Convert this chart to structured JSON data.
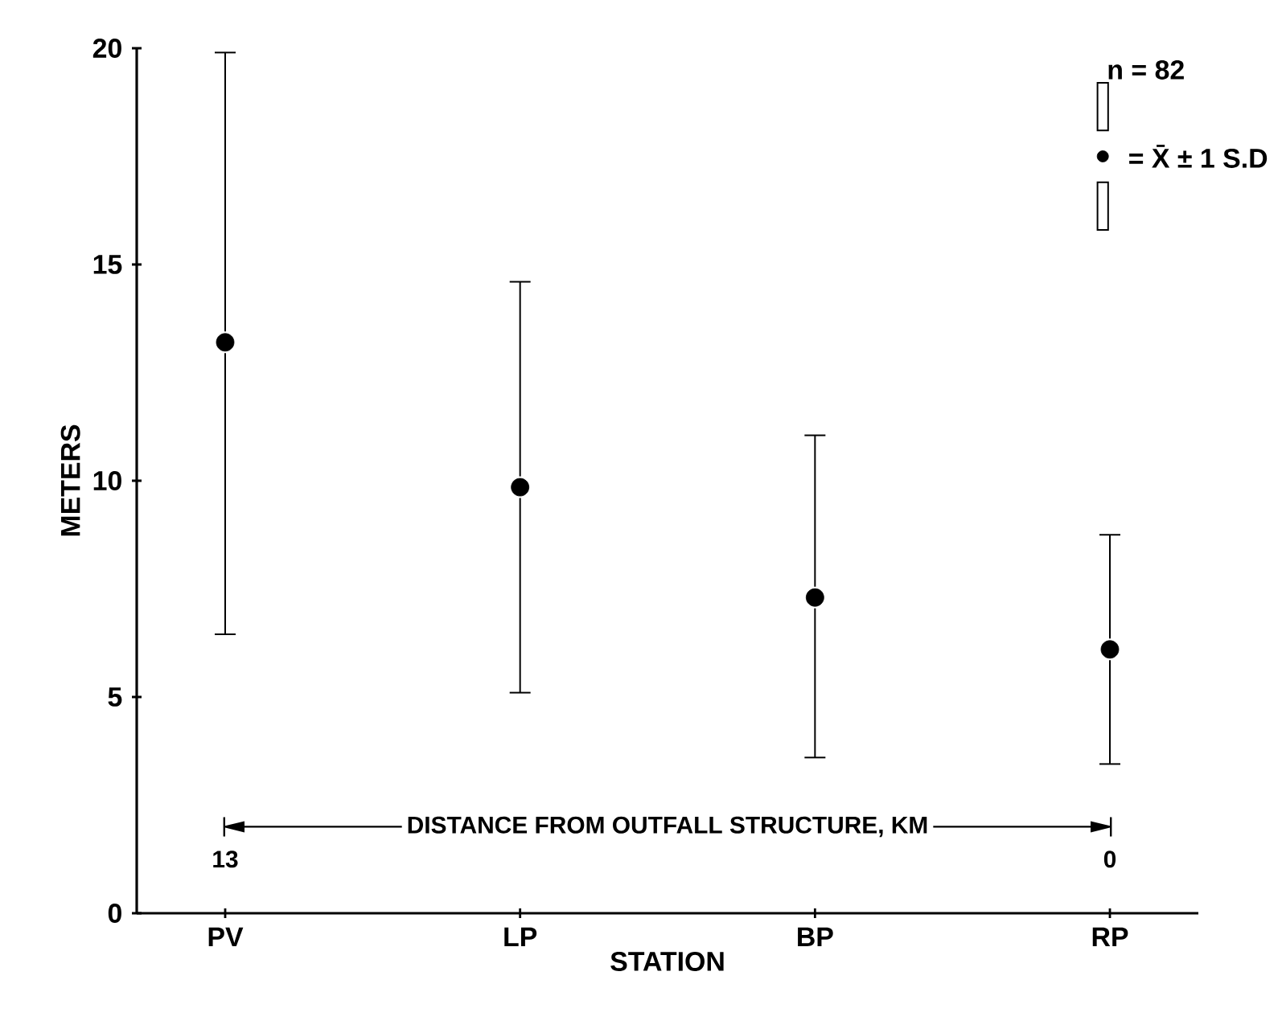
{
  "chart_data": {
    "type": "scatter",
    "xlabel": "STATION",
    "ylabel": "METERS",
    "categories": [
      "PV",
      "LP",
      "BP",
      "RP"
    ],
    "values": [
      13.2,
      9.85,
      7.3,
      6.1
    ],
    "errors": [
      [
        6.45,
        19.9
      ],
      [
        5.1,
        14.6
      ],
      [
        3.6,
        11.05
      ],
      [
        3.45,
        8.75
      ]
    ],
    "color": "#000000",
    "marker": "circle",
    "ylim": [
      0,
      20
    ],
    "yticks": [
      0,
      5,
      10,
      15,
      20
    ],
    "annotations": [
      "n = 82",
      "= X̄ ± 1 S.D",
      "DISTANCE FROM OUTFALL STRUCTURE, KM",
      "13",
      "0"
    ]
  }
}
